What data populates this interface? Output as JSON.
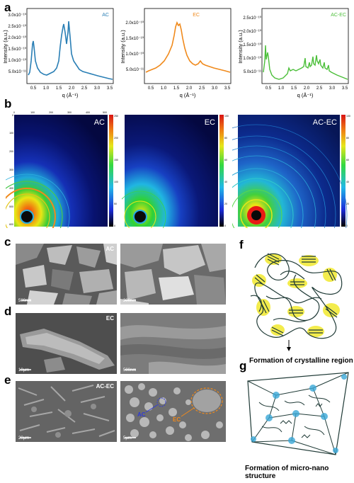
{
  "panels": {
    "a": "a",
    "b": "b",
    "c": "c",
    "d": "d",
    "e": "e",
    "f": "f",
    "g": "g"
  },
  "xrd_charts": [
    {
      "legend": "AC",
      "color": "#2a7fb5",
      "ylabel": "Intensity (a.u.)",
      "xlabel": "q (Å⁻¹)",
      "xticks": [
        "0.5",
        "1.0",
        "1.5",
        "2.0",
        "2.5",
        "3.0",
        "3.5"
      ],
      "yticks": [
        "5.0x10⁻¹¹",
        "1.0x10⁻¹⁰",
        "1.5x10⁻¹⁰",
        "2.0x10⁻¹⁰",
        "2.5x10⁻¹⁰",
        "3.0x10⁻¹⁰"
      ]
    },
    {
      "legend": "EC",
      "color": "#f08a1c",
      "ylabel": "Intensity (a.u.)",
      "xlabel": "q (Å⁻¹)",
      "xticks": [
        "0.5",
        "1.0",
        "1.5",
        "2.0",
        "2.5",
        "3.0",
        "3.5"
      ],
      "yticks": [
        "5.0x10⁻¹¹",
        "1.0x10⁻¹⁰",
        "1.5x10⁻¹⁰",
        "2.0x10⁻¹⁰"
      ]
    },
    {
      "legend": "AC-EC",
      "color": "#4cbf3a",
      "ylabel": "Intensity (a.u.)",
      "xlabel": "q (Å⁻¹)",
      "xticks": [
        "0.5",
        "1.0",
        "1.5",
        "2.0",
        "2.5",
        "3.0",
        "3.5"
      ],
      "yticks": [
        "5.0x10⁻¹¹",
        "1.0x10⁻¹⁰",
        "1.5x10⁻¹⁰",
        "2.0x10⁻¹⁰",
        "2.5x10⁻¹⁰"
      ]
    }
  ],
  "saxs": [
    {
      "label": "AC",
      "colorbar": [
        "250",
        "200",
        "150",
        "100",
        "50",
        "0"
      ]
    },
    {
      "label": "EC",
      "colorbar": [
        "100",
        "80",
        "60",
        "40",
        "20",
        "0"
      ]
    },
    {
      "label": "AC-EC",
      "colorbar": [
        "100",
        "80",
        "60",
        "40",
        "20",
        "0"
      ]
    }
  ],
  "saxs_axis": {
    "top": [
      "0",
      "100",
      "200",
      "300",
      "400",
      "500"
    ],
    "left": [
      "0",
      "100",
      "200",
      "300",
      "400",
      "500",
      "600"
    ]
  },
  "sem": {
    "c_left_label": "AC",
    "c_left_scale": "500nm",
    "c_right_scale": "200nm",
    "d_left_label": "EC",
    "d_left_scale": "10μm",
    "d_right_scale": "500nm",
    "e_left_label": "AC-EC",
    "e_left_scale": "20μm",
    "e_right_scale": "5μm",
    "e_ac": "AC",
    "e_ec": "EC"
  },
  "schematics": {
    "f_caption": "Formation of crystalline region",
    "g_caption": "Formation of micro-nano structure"
  }
}
